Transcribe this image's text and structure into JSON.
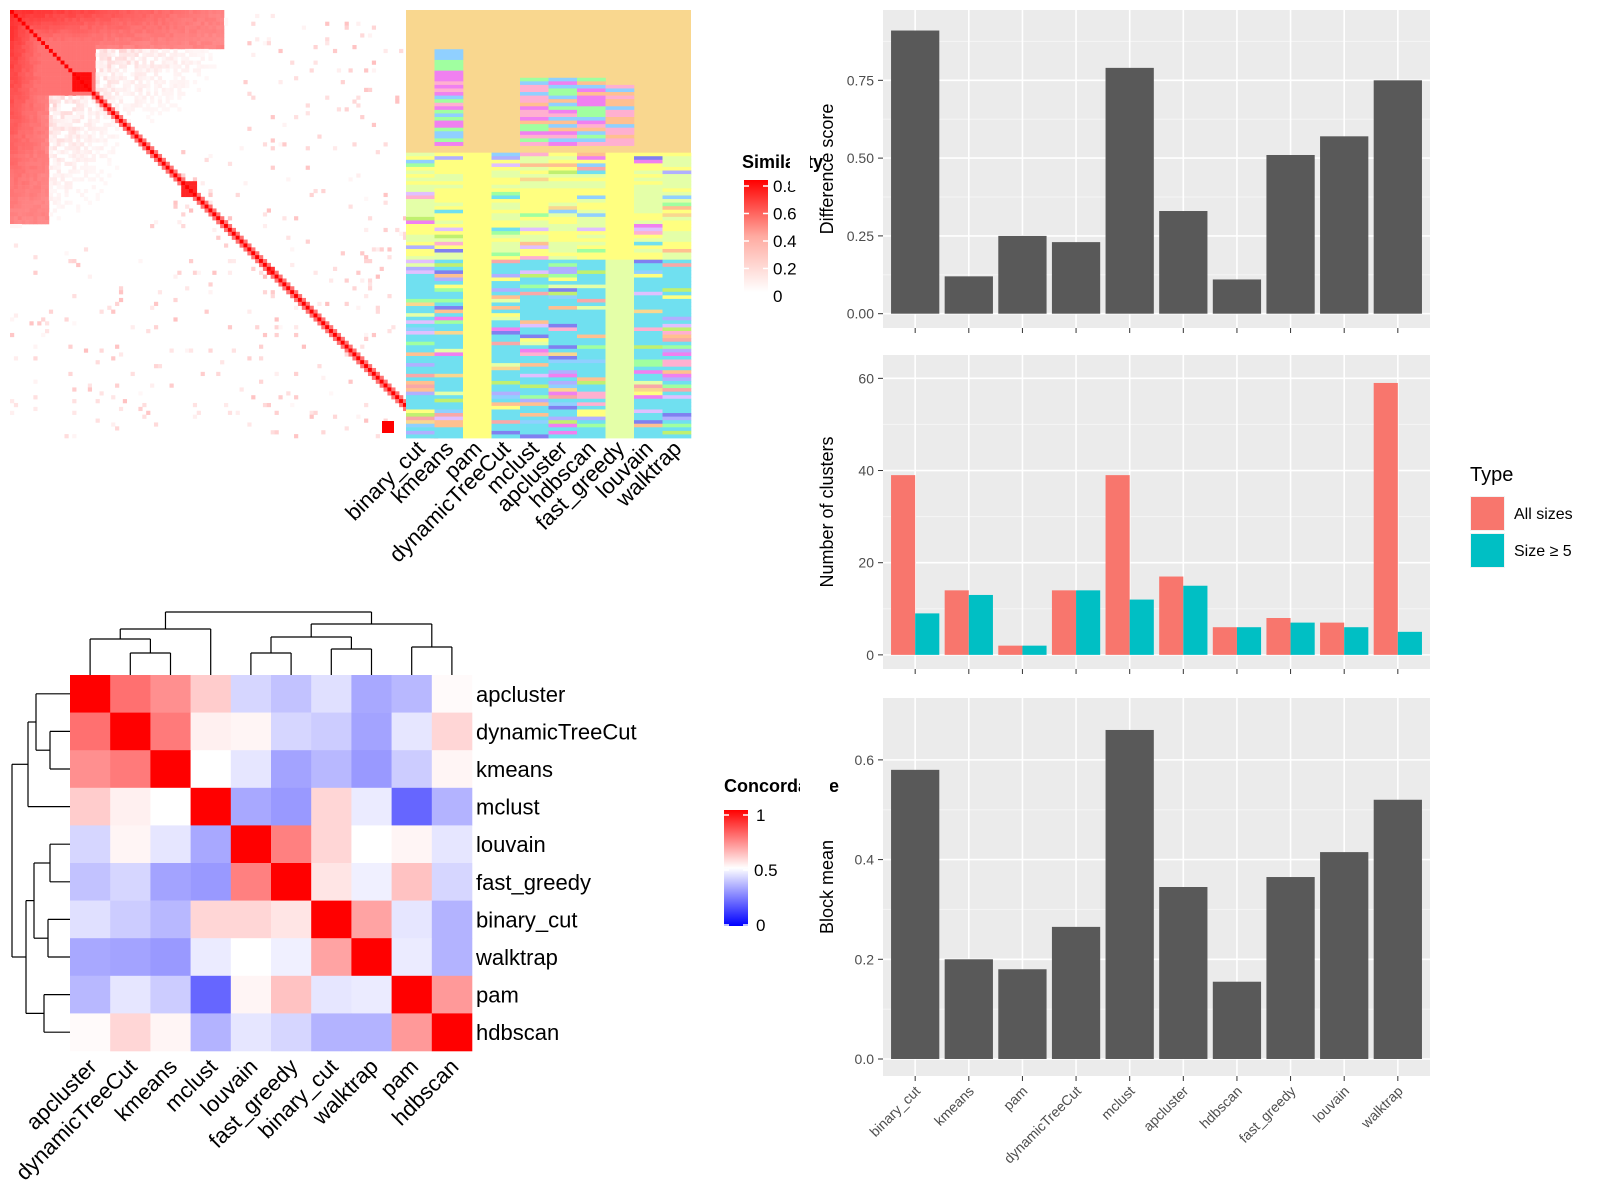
{
  "methods": [
    "binary_cut",
    "kmeans",
    "pam",
    "dynamicTreeCut",
    "mclust",
    "apcluster",
    "hdbscan",
    "fast_greedy",
    "louvain",
    "walktrap"
  ],
  "similarity_heatmap": {
    "legend_title": "Similarity",
    "legend_ticks": [
      "0.8",
      "0.6",
      "0.4",
      "0.2",
      "0"
    ],
    "column_labels": [
      "binary_cut",
      "kmeans",
      "pam",
      "dynamicTreeCut",
      "mclust",
      "apcluster",
      "hdbscan",
      "fast_greedy",
      "louvain",
      "walktrap"
    ]
  },
  "concordance_heatmap": {
    "legend_title": "Concordance",
    "legend_ticks": [
      "1",
      "0.5",
      "0"
    ],
    "order": [
      "apcluster",
      "dynamicTreeCut",
      "kmeans",
      "mclust",
      "louvain",
      "fast_greedy",
      "binary_cut",
      "walktrap",
      "pam",
      "hdbscan"
    ],
    "colors": {
      "high": "#ff0000",
      "mid": "#ffffff",
      "low": "#0000ff"
    }
  },
  "chart_data": [
    {
      "type": "bar",
      "categories": [
        "binary_cut",
        "kmeans",
        "pam",
        "dynamicTreeCut",
        "mclust",
        "apcluster",
        "hdbscan",
        "fast_greedy",
        "louvain",
        "walktrap"
      ],
      "values": [
        0.91,
        0.12,
        0.25,
        0.23,
        0.79,
        0.33,
        0.11,
        0.51,
        0.57,
        0.75
      ],
      "xlabel": "",
      "ylabel": "Difference score",
      "ylim": [
        0,
        0.93
      ],
      "yticks": [
        "0.00",
        "0.25",
        "0.50",
        "0.75"
      ],
      "bar_color": "#595959"
    },
    {
      "type": "bar",
      "categories": [
        "binary_cut",
        "kmeans",
        "pam",
        "dynamicTreeCut",
        "mclust",
        "apcluster",
        "hdbscan",
        "fast_greedy",
        "louvain",
        "walktrap"
      ],
      "series": [
        {
          "name": "All sizes",
          "values": [
            39,
            14,
            2,
            14,
            39,
            17,
            6,
            8,
            7,
            59
          ],
          "color": "#f8766d"
        },
        {
          "name": "Size ≥ 5",
          "values": [
            9,
            13,
            2,
            14,
            12,
            15,
            6,
            7,
            6,
            5
          ],
          "color": "#00bfc4"
        }
      ],
      "xlabel": "",
      "ylabel": "Number of clusters",
      "ylim": [
        0,
        62
      ],
      "yticks": [
        "0",
        "20",
        "40",
        "60"
      ],
      "legend_title": "Type",
      "legend_position": "right"
    },
    {
      "type": "bar",
      "categories": [
        "binary_cut",
        "kmeans",
        "pam",
        "dynamicTreeCut",
        "mclust",
        "apcluster",
        "hdbscan",
        "fast_greedy",
        "louvain",
        "walktrap"
      ],
      "values": [
        0.58,
        0.2,
        0.18,
        0.265,
        0.66,
        0.345,
        0.155,
        0.365,
        0.415,
        0.52
      ],
      "xlabel": "",
      "ylabel": "Block mean",
      "ylim": [
        0,
        0.69
      ],
      "yticks": [
        "0.0",
        "0.2",
        "0.4",
        "0.6"
      ],
      "bar_color": "#595959"
    }
  ]
}
